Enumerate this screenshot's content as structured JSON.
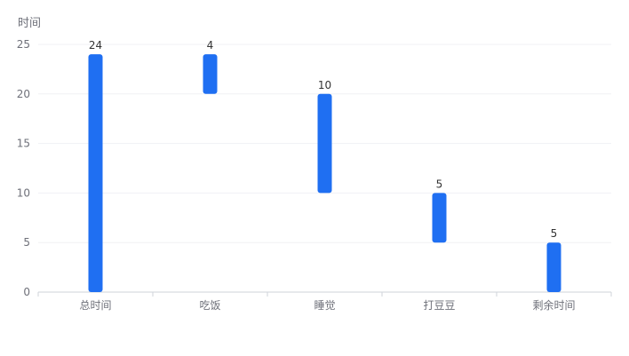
{
  "chart_data": {
    "type": "bar",
    "subtype": "waterfall",
    "ylabel": "时间",
    "categories": [
      "总时间",
      "吃饭",
      "睡觉",
      "打豆豆",
      "剩余时间"
    ],
    "values": [
      24,
      4,
      10,
      5,
      5
    ],
    "bases": [
      0,
      20,
      10,
      5,
      0
    ],
    "ylim": [
      0,
      25
    ],
    "yticks": [
      0,
      5,
      10,
      15,
      20,
      25
    ],
    "grid": true,
    "bar_color": "#1f6ff2",
    "grid_color": "#f0f1f4",
    "axis_color": "#cfd3da"
  }
}
